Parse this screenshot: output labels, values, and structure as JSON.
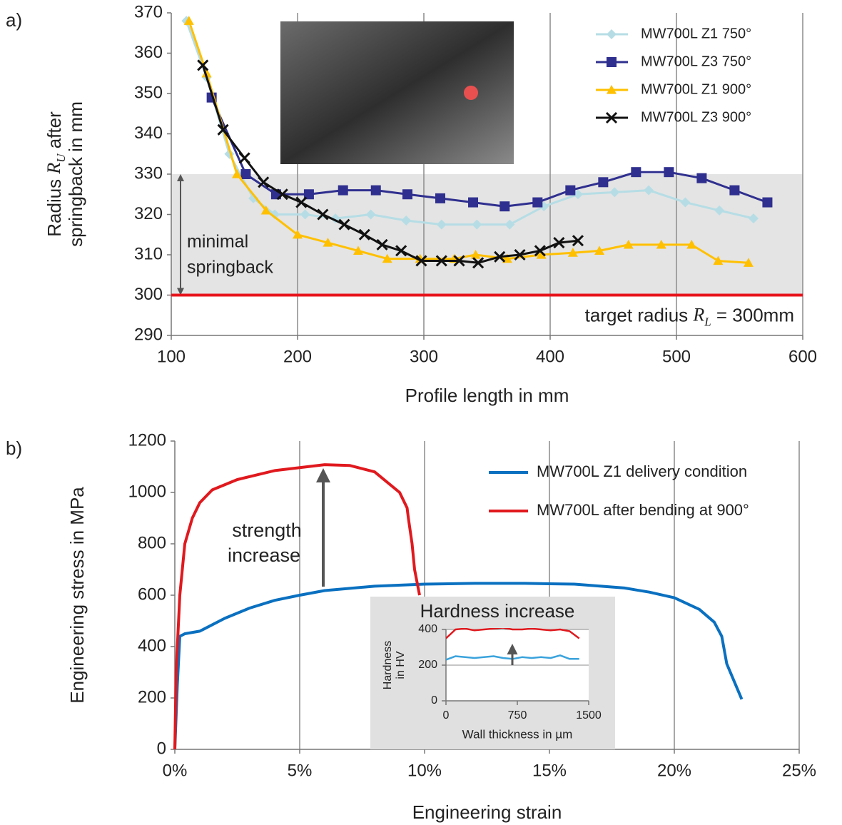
{
  "chart_data": [
    {
      "type": "line",
      "panel_label": "a)",
      "xlabel": "Profile length in mm",
      "ylabel": {
        "line1": {
          "pre": "Radius ",
          "symbol": "R",
          "sub": "U",
          "post": " after"
        },
        "line2": "springback in mm"
      },
      "xlim": [
        100,
        600
      ],
      "ylim": [
        290,
        370
      ],
      "xticks": [
        100,
        200,
        300,
        400,
        500,
        600
      ],
      "yticks": [
        290,
        300,
        310,
        320,
        330,
        340,
        350,
        360,
        370
      ],
      "grid": "x",
      "legend": "upper right",
      "band": {
        "range": [
          300,
          330
        ],
        "color": "#e4e4e4",
        "label": {
          "line1": "minimal",
          "line2": "springback"
        }
      },
      "reference_line": {
        "value": 300,
        "color": "#e8141c",
        "label": {
          "pre": "target radius ",
          "symbol": "R",
          "sub": "L",
          "post": " = 300mm"
        }
      },
      "series": [
        {
          "name": "MW700L Z1 750°",
          "color": "#b6dde5",
          "marker": "diamond",
          "x": [
            112,
            128,
            146,
            165,
            182,
            206,
            230,
            258,
            286,
            314,
            342,
            368,
            395,
            422,
            451,
            478,
            507,
            534,
            561
          ],
          "values": [
            368,
            354,
            335,
            324,
            320,
            320,
            319,
            320,
            318.5,
            317.5,
            317.5,
            317.5,
            322,
            325,
            325.5,
            326,
            323,
            321,
            319
          ]
        },
        {
          "name": "MW700L Z3 750°",
          "color": "#2f2f8f",
          "marker": "square",
          "x": [
            132,
            159,
            183,
            209,
            236,
            262,
            287,
            313,
            339,
            364,
            390,
            416,
            442,
            468,
            494,
            520,
            546,
            572
          ],
          "values": [
            349,
            330,
            325,
            325,
            326,
            326,
            325,
            324,
            323,
            322,
            323,
            326,
            328,
            330.5,
            330.5,
            329,
            326,
            323
          ]
        },
        {
          "name": "MW700L Z1 900°",
          "color": "#ffc000",
          "marker": "triangle",
          "x": [
            114,
            128,
            152,
            175,
            200,
            224,
            248,
            271,
            297,
            324,
            341,
            366,
            393,
            418,
            439,
            462,
            488,
            512,
            533,
            557
          ],
          "values": [
            368,
            355,
            330,
            321,
            315,
            313,
            311,
            309,
            309,
            309,
            310,
            309,
            310,
            310.5,
            311,
            312.5,
            312.5,
            312.5,
            308.5,
            308
          ]
        },
        {
          "name": "MW700L Z3 900°",
          "color": "#111111",
          "marker": "x",
          "x": [
            125,
            141,
            158,
            173,
            188,
            203,
            220,
            237,
            253,
            267,
            282,
            298,
            314,
            328,
            343,
            360,
            376,
            392,
            407,
            422
          ],
          "values": [
            357,
            341,
            334,
            328,
            325,
            323,
            320,
            317.5,
            315,
            312.5,
            311,
            308.5,
            308.5,
            308.5,
            308,
            309.5,
            310,
            311,
            313,
            313.5
          ]
        }
      ]
    },
    {
      "type": "line",
      "panel_label": "b)",
      "xlabel": "Engineering strain",
      "ylabel": "Engineering stress in MPa",
      "xlim": [
        0,
        25
      ],
      "ylim": [
        0,
        1200
      ],
      "xticks": [
        {
          "value": 0,
          "label": "0%"
        },
        {
          "value": 5,
          "label": "5%"
        },
        {
          "value": 10,
          "label": "10%"
        },
        {
          "value": 15,
          "label": "15%"
        },
        {
          "value": 20,
          "label": "20%"
        },
        {
          "value": 25,
          "label": "25%"
        }
      ],
      "yticks": [
        0,
        200,
        400,
        600,
        800,
        1000,
        1200
      ],
      "grid": "x",
      "legend": "upper right",
      "annotation": {
        "line1": "strength",
        "line2": "increase"
      },
      "series": [
        {
          "name": "MW700L Z1 delivery condition",
          "color": "#0a70c0",
          "x": [
            0,
            0.1,
            0.2,
            0.4,
            1,
            1.2,
            2,
            3,
            4,
            5,
            6,
            8,
            10,
            12,
            14,
            16,
            18,
            19,
            20,
            21,
            21.6,
            21.9,
            22.1,
            22.7
          ],
          "values": [
            0,
            250,
            440,
            450,
            460,
            470,
            510,
            550,
            580,
            600,
            618,
            635,
            643,
            646,
            646,
            643,
            628,
            612,
            590,
            545,
            495,
            440,
            333,
            195
          ]
        },
        {
          "name": "MW700L after bending at 900°",
          "color": "#e0191e",
          "x": [
            0,
            0.05,
            0.2,
            0.4,
            0.7,
            1,
            1.5,
            2.5,
            4,
            6,
            7,
            8,
            9,
            9.3,
            9.35,
            9.5,
            9.6,
            9.8
          ],
          "values": [
            0,
            300,
            600,
            800,
            900,
            960,
            1010,
            1050,
            1085,
            1108,
            1105,
            1080,
            1000,
            940,
            900,
            800,
            700,
            600
          ]
        }
      ]
    },
    {
      "type": "line",
      "title": "Hardness increase",
      "xlabel": "Wall thickness in µm",
      "ylabel": {
        "line1": "Hardness",
        "line2": "in HV"
      },
      "xlim": [
        0,
        1500
      ],
      "ylim": [
        0,
        400
      ],
      "xticks": [
        0,
        750,
        1500
      ],
      "yticks": [
        0,
        200,
        400
      ],
      "grid": "y",
      "series": [
        {
          "color": "#e0191e",
          "x": [
            0,
            100,
            200,
            300,
            400,
            500,
            600,
            700,
            800,
            900,
            1000,
            1100,
            1200,
            1300,
            1400
          ],
          "values": [
            350,
            400,
            405,
            395,
            400,
            405,
            410,
            400,
            400,
            405,
            400,
            395,
            400,
            390,
            350
          ]
        },
        {
          "color": "#3aa3dc",
          "x": [
            0,
            100,
            200,
            300,
            400,
            500,
            600,
            700,
            800,
            900,
            1000,
            1100,
            1200,
            1300,
            1400
          ],
          "values": [
            230,
            250,
            245,
            240,
            245,
            250,
            240,
            235,
            245,
            240,
            245,
            240,
            255,
            235,
            235
          ]
        }
      ]
    }
  ]
}
